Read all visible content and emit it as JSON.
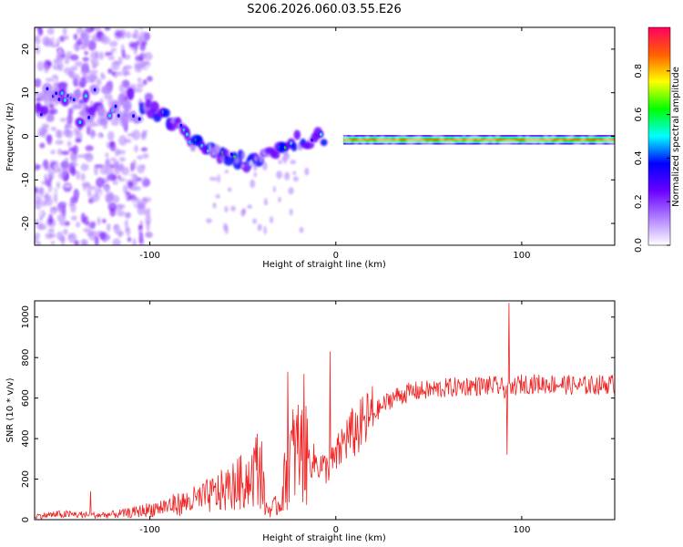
{
  "title": "S206.2026.060.03.55.E26",
  "chart_data": [
    {
      "type": "heatmap",
      "title": "S206.2026.060.03.55.E26",
      "xlabel": "Height of straight line (km)",
      "ylabel": "Frequency (Hz)",
      "xlim": [
        -162,
        150
      ],
      "ylim": [
        -25,
        25
      ],
      "x_ticks": [
        -100,
        0,
        100
      ],
      "y_ticks": [
        -20,
        -10,
        0,
        10,
        20
      ],
      "colorbar": {
        "label": "Normalized spectral amplitude",
        "range": [
          0,
          1
        ],
        "ticks": [
          0.0,
          0.2,
          0.4,
          0.6,
          0.8
        ],
        "colors": [
          "#ffffff",
          "#b080ff",
          "#6a00ff",
          "#0000ff",
          "#00ffff",
          "#00ff00",
          "#ffff00",
          "#ff6000",
          "#ff0060"
        ]
      },
      "ridge": {
        "name": "Dominant Doppler frequency",
        "x": [
          -105,
          -95,
          -85,
          -75,
          -65,
          -55,
          -45,
          -35,
          -25,
          -15,
          -5,
          0,
          10,
          50,
          100,
          150
        ],
        "y": [
          7,
          5,
          2,
          -2,
          -4,
          -5,
          -6,
          -4,
          -1,
          -1,
          0,
          -1,
          -1,
          -1,
          -0.5,
          0
        ]
      }
    },
    {
      "type": "line",
      "xlabel": "Height of straight line (km)",
      "ylabel": "SNR (10 * v/v)",
      "xlim": [
        -162,
        150
      ],
      "ylim": [
        0,
        1080
      ],
      "x_ticks": [
        -100,
        0,
        100
      ],
      "y_ticks": [
        0,
        200,
        400,
        600,
        800,
        1000
      ],
      "series": [
        {
          "name": "SNR",
          "color": "#ee2222",
          "x": [
            -162,
            -150,
            -140,
            -130,
            -120,
            -110,
            -100,
            -90,
            -80,
            -70,
            -60,
            -50,
            -45,
            -40,
            -38,
            -35,
            -30,
            -25,
            -20,
            -15,
            -10,
            -5,
            0,
            5,
            10,
            15,
            20,
            25,
            30,
            40,
            50,
            60,
            70,
            80,
            85,
            90,
            92,
            94,
            96,
            100,
            110,
            120,
            130,
            140,
            150
          ],
          "y": [
            20,
            30,
            30,
            25,
            30,
            40,
            60,
            80,
            100,
            130,
            170,
            220,
            250,
            260,
            60,
            50,
            80,
            300,
            350,
            300,
            280,
            250,
            300,
            400,
            430,
            470,
            520,
            560,
            600,
            630,
            640,
            650,
            660,
            660,
            660,
            650,
            640,
            620,
            660,
            670,
            670,
            670,
            660,
            665,
            670
          ]
        }
      ],
      "spikes": [
        {
          "x": -132,
          "y": 140
        },
        {
          "x": -26,
          "y": 730
        },
        {
          "x": -17,
          "y": 720
        },
        {
          "x": -3,
          "y": 830
        },
        {
          "x": 93,
          "y": 1070
        },
        {
          "x": 92,
          "y": 320
        }
      ]
    }
  ]
}
